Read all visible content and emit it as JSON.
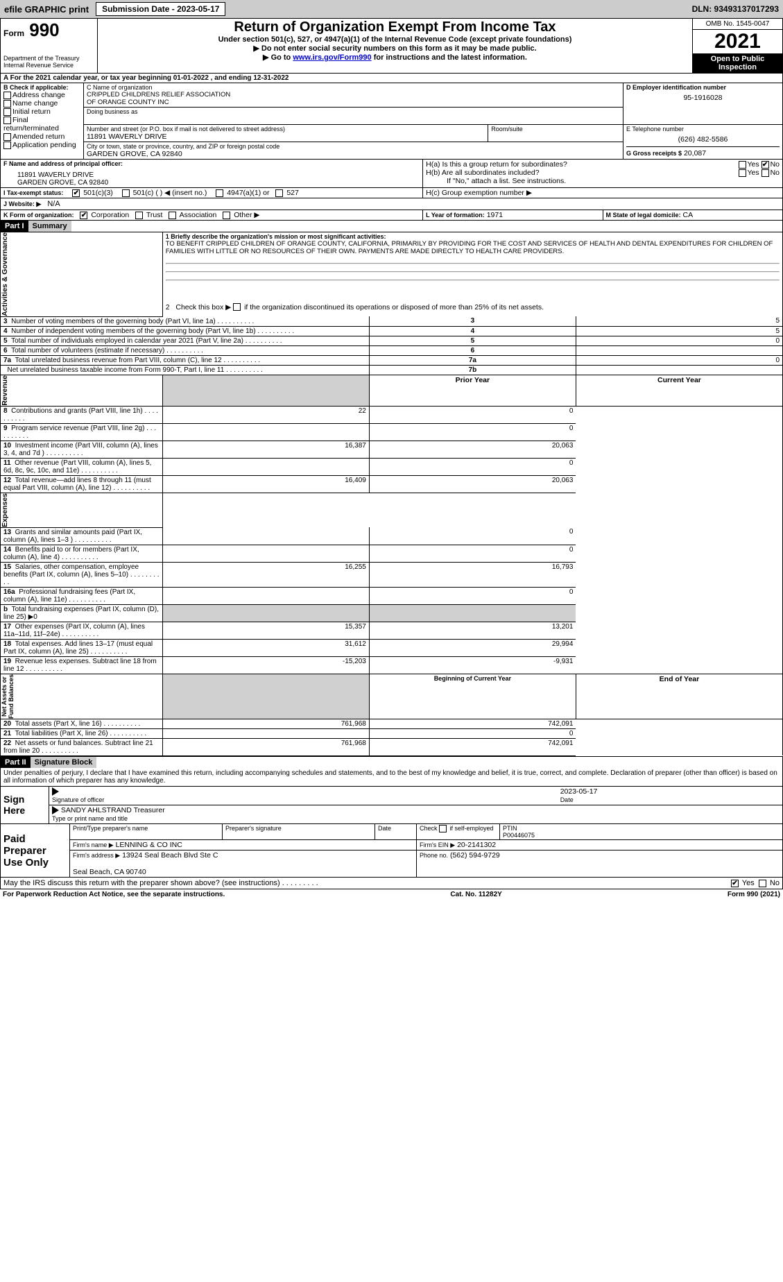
{
  "topbar": {
    "efile": "efile GRAPHIC print",
    "submission": "Submission Date - 2023-05-17",
    "dln": "DLN: 93493137017293"
  },
  "header": {
    "form": "990",
    "formPrefix": "Form",
    "title": "Return of Organization Exempt From Income Tax",
    "sub1": "Under section 501(c), 527, or 4947(a)(1) of the Internal Revenue Code (except private foundations)",
    "sub2": "▶ Do not enter social security numbers on this form as it may be made public.",
    "sub3": "▶ Go to www.irs.gov/Form990 for instructions and the latest information.",
    "dept": "Department of the Treasury\nInternal Revenue Service",
    "omb": "OMB No. 1545-0047",
    "year": "2021",
    "inspection": "Open to Public\nInspection"
  },
  "A": {
    "line": "A For the 2021 calendar year, or tax year beginning 01-01-2022    , and ending 12-31-2022"
  },
  "B": {
    "label": "B Check if applicable:",
    "items": [
      "Address change",
      "Name change",
      "Initial return",
      "Final return/terminated",
      "Amended return",
      "Application pending"
    ]
  },
  "C": {
    "nameLabel": "C Name of organization",
    "name": "CRIPPLED CHILDRENS RELIEF ASSOCIATION\nOF ORANGE COUNTY INC",
    "dbaLabel": "Doing business as",
    "addrLabel": "Number and street (or P.O. box if mail is not delivered to street address)",
    "addr": "11891 WAVERLY DRIVE",
    "roomLabel": "Room/suite",
    "cityLabel": "City or town, state or province, country, and ZIP or foreign postal code",
    "city": "GARDEN GROVE, CA  92840"
  },
  "D": {
    "label": "D Employer identification number",
    "value": "95-1916028"
  },
  "E": {
    "label": "E Telephone number",
    "value": "(626) 482-5586"
  },
  "G": {
    "label": "G Gross receipts $",
    "value": "20,087"
  },
  "F": {
    "label": "F  Name and address of principal officer:",
    "addr": "11891 WAVERLY DRIVE\nGARDEN GROVE, CA  92840"
  },
  "H": {
    "a": "H(a)  Is this a group return for subordinates?",
    "b": "H(b)  Are all subordinates included?",
    "bNote": "If \"No,\" attach a list. See instructions.",
    "c": "H(c)  Group exemption number ▶",
    "yes": "Yes",
    "no": "No"
  },
  "I": {
    "label": "I  Tax-exempt status:",
    "o1": "501(c)(3)",
    "o2": "501(c) (   ) ◀ (insert no.)",
    "o3": "4947(a)(1) or",
    "o4": "527"
  },
  "J": {
    "label": "J   Website: ▶",
    "value": "N/A"
  },
  "K": {
    "label": "K Form of organization:",
    "o1": "Corporation",
    "o2": "Trust",
    "o3": "Association",
    "o4": "Other ▶"
  },
  "L": {
    "label": "L Year of formation:",
    "value": "1971"
  },
  "M": {
    "label": "M State of legal domicile:",
    "value": "CA"
  },
  "part1": {
    "hdr": "Part I",
    "title": "Summary"
  },
  "summary": {
    "q1": "1  Briefly describe the organization's mission or most significant activities:",
    "mission": "TO BENEFIT CRIPPLED CHILDREN OF ORANGE COUNTY, CALIFORNIA, PRIMARILY BY PROVIDING FOR THE COST AND SERVICES OF HEALTH AND DENTAL EXPENDITURES FOR CHILDREN OF FAMILIES WITH LITTLE OR NO RESOURCES OF THEIR OWN. PAYMENTS ARE MADE DIRECTLY TO HEALTH CARE PROVIDERS.",
    "q2": "2   Check this box ▶         if the organization discontinued its operations or disposed of more than 25% of its net assets.",
    "rows": [
      {
        "n": "3",
        "t": "Number of voting members of the governing body (Part VI, line 1a)",
        "box": "3",
        "v": "5"
      },
      {
        "n": "4",
        "t": "Number of independent voting members of the governing body (Part VI, line 1b)",
        "box": "4",
        "v": "5"
      },
      {
        "n": "5",
        "t": "Total number of individuals employed in calendar year 2021 (Part V, line 2a)",
        "box": "5",
        "v": "0"
      },
      {
        "n": "6",
        "t": "Total number of volunteers (estimate if necessary)",
        "box": "6",
        "v": ""
      },
      {
        "n": "7a",
        "t": "Total unrelated business revenue from Part VIII, column (C), line 12",
        "box": "7a",
        "v": "0"
      },
      {
        "n": "",
        "t": "Net unrelated business taxable income from Form 990-T, Part I, line 11",
        "box": "7b",
        "v": ""
      }
    ],
    "colPrior": "Prior Year",
    "colCurrent": "Current Year",
    "revenue": [
      {
        "n": "8",
        "t": "Contributions and grants (Part VIII, line 1h)",
        "p": "22",
        "c": "0"
      },
      {
        "n": "9",
        "t": "Program service revenue (Part VIII, line 2g)",
        "p": "",
        "c": "0"
      },
      {
        "n": "10",
        "t": "Investment income (Part VIII, column (A), lines 3, 4, and 7d )",
        "p": "16,387",
        "c": "20,063"
      },
      {
        "n": "11",
        "t": "Other revenue (Part VIII, column (A), lines 5, 6d, 8c, 9c, 10c, and 11e)",
        "p": "",
        "c": "0"
      },
      {
        "n": "12",
        "t": "Total revenue—add lines 8 through 11 (must equal Part VIII, column (A), line 12)",
        "p": "16,409",
        "c": "20,063"
      }
    ],
    "expenses": [
      {
        "n": "13",
        "t": "Grants and similar amounts paid (Part IX, column (A), lines 1–3 )",
        "p": "",
        "c": "0"
      },
      {
        "n": "14",
        "t": "Benefits paid to or for members (Part IX, column (A), line 4)",
        "p": "",
        "c": "0"
      },
      {
        "n": "15",
        "t": "Salaries, other compensation, employee benefits (Part IX, column (A), lines 5–10)",
        "p": "16,255",
        "c": "16,793"
      },
      {
        "n": "16a",
        "t": "Professional fundraising fees (Part IX, column (A), line 11e)",
        "p": "",
        "c": "0"
      },
      {
        "n": "b",
        "t": "Total fundraising expenses (Part IX, column (D), line 25) ▶0",
        "noval": true
      },
      {
        "n": "17",
        "t": "Other expenses (Part IX, column (A), lines 11a–11d, 11f–24e)",
        "p": "15,357",
        "c": "13,201"
      },
      {
        "n": "18",
        "t": "Total expenses. Add lines 13–17 (must equal Part IX, column (A), line 25)",
        "p": "31,612",
        "c": "29,994"
      },
      {
        "n": "19",
        "t": "Revenue less expenses. Subtract line 18 from line 12",
        "p": "-15,203",
        "c": "-9,931"
      }
    ],
    "colBegin": "Beginning of Current Year",
    "colEnd": "End of Year",
    "net": [
      {
        "n": "20",
        "t": "Total assets (Part X, line 16)",
        "p": "761,968",
        "c": "742,091"
      },
      {
        "n": "21",
        "t": "Total liabilities (Part X, line 26)",
        "p": "",
        "c": "0"
      },
      {
        "n": "22",
        "t": "Net assets or fund balances. Subtract line 21 from line 20",
        "p": "761,968",
        "c": "742,091"
      }
    ],
    "sideLabels": {
      "a": "Activities & Governance",
      "r": "Revenue",
      "e": "Expenses",
      "n": "Net Assets or\nFund Balances"
    }
  },
  "part2": {
    "hdr": "Part II",
    "title": "Signature Block",
    "decl": "Under penalties of perjury, I declare that I have examined this return, including accompanying schedules and statements, and to the best of my knowledge and belief, it is true, correct, and complete. Declaration of preparer (other than officer) is based on all information of which preparer has any knowledge."
  },
  "sign": {
    "here": "Sign\nHere",
    "sigLabel": "Signature of officer",
    "dateLabel": "Date",
    "date": "2023-05-17",
    "typedLabel": "Type or print name and title",
    "typed": "SANDY AHLSTRAND  Treasurer"
  },
  "preparer": {
    "here": "Paid\nPreparer\nUse Only",
    "c1": "Print/Type preparer's name",
    "c2": "Preparer's signature",
    "c3": "Date",
    "c4": "Check         if self-employed",
    "c5": "PTIN",
    "ptin": "P00446075",
    "firmLabel": "Firm's name    ▶",
    "firm": "LENNING & CO INC",
    "einLabel": "Firm's EIN ▶",
    "ein": "20-2141302",
    "addrLabel": "Firm's address ▶",
    "addr": "13924 Seal Beach Blvd Ste C\n\nSeal Beach, CA  90740",
    "phoneLabel": "Phone no.",
    "phone": "(562) 594-9729"
  },
  "may": {
    "q": "May the IRS discuss this return with the preparer shown above? (see instructions)",
    "yes": "Yes",
    "no": "No"
  },
  "footer": {
    "l": "For Paperwork Reduction Act Notice, see the separate instructions.",
    "m": "Cat. No. 11282Y",
    "r": "Form 990 (2021)"
  }
}
